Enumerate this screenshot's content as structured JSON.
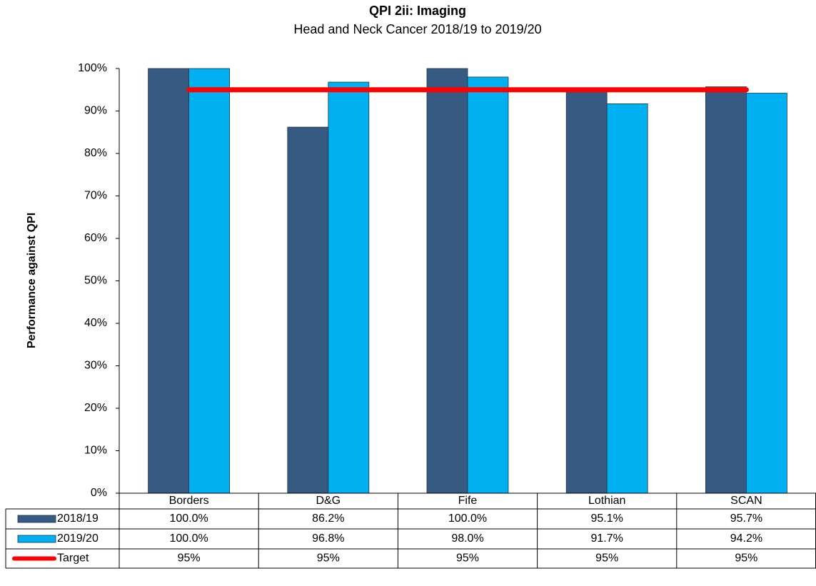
{
  "chart_data": {
    "type": "bar",
    "title": "QPI 2ii: Imaging",
    "subtitle": "Head and Neck Cancer 2018/19 to 2019/20",
    "y_label": "Performance against QPI",
    "categories": [
      "Borders",
      "D&G",
      "Fife",
      "Lothian",
      "SCAN"
    ],
    "series": [
      {
        "name": "2018/19",
        "color": "#375a83",
        "type": "bar",
        "values": [
          100,
          86.2,
          100,
          95.1,
          95.7
        ],
        "value_labels": [
          "100.0%",
          "86.2%",
          "100.0%",
          "95.1%",
          "95.7%"
        ]
      },
      {
        "name": "2019/20",
        "color": "#00b0f0",
        "type": "bar",
        "values": [
          100,
          96.8,
          98,
          91.7,
          94.2
        ],
        "value_labels": [
          "100.0%",
          "96.8%",
          "98.0%",
          "91.7%",
          "94.2%"
        ]
      },
      {
        "name": "Target",
        "color": "#ff0000",
        "type": "line",
        "values": [
          95,
          95,
          95,
          95,
          95
        ],
        "value_labels": [
          "95%",
          "95%",
          "95%",
          "95%",
          "95%"
        ]
      }
    ],
    "ylim": [
      0,
      100
    ],
    "yticks": [
      {
        "value": 0,
        "label": "0%"
      },
      {
        "value": 10,
        "label": "10%"
      },
      {
        "value": 20,
        "label": "20%"
      },
      {
        "value": 30,
        "label": "30%"
      },
      {
        "value": 40,
        "label": "40%"
      },
      {
        "value": 50,
        "label": "50%"
      },
      {
        "value": 60,
        "label": "60%"
      },
      {
        "value": 70,
        "label": "70%"
      },
      {
        "value": 80,
        "label": "80%"
      },
      {
        "value": 90,
        "label": "90%"
      },
      {
        "value": 100,
        "label": "100%"
      }
    ]
  }
}
